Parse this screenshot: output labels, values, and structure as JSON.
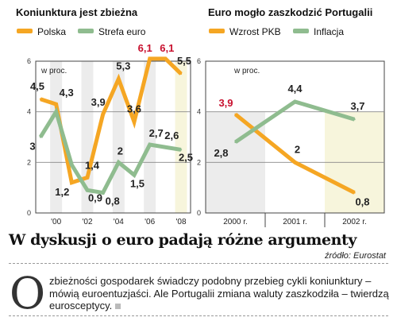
{
  "chart_data": [
    {
      "type": "line",
      "title": "Koniunktura jest zbieżna",
      "unit": "w proc.",
      "x": [
        1999,
        2000,
        2001,
        2002,
        2003,
        2004,
        2005,
        2006,
        2007,
        2008
      ],
      "x_tick_labels": [
        "'00",
        "'02",
        "'04",
        "'06",
        "'08"
      ],
      "x_ticks": [
        2000,
        2002,
        2004,
        2006,
        2008
      ],
      "ylim": [
        0,
        6
      ],
      "yticks": [
        "0",
        "2",
        "4",
        "6"
      ],
      "grid": true,
      "series": [
        {
          "name": "Polska",
          "color": "#f5a623",
          "values": [
            4.5,
            4.3,
            1.2,
            1.4,
            3.9,
            5.3,
            3.6,
            6.1,
            6.1,
            5.5
          ],
          "labels": [
            "4,5",
            "4,3",
            "1,2",
            "1,4",
            "3,9",
            "5,3",
            "3,6",
            "6,1",
            "6,1",
            "5,5"
          ],
          "highlight": [
            7,
            8
          ]
        },
        {
          "name": "Strefa euro",
          "color": "#8fbc8f",
          "values": [
            3.0,
            4.0,
            1.9,
            0.9,
            0.8,
            2.0,
            1.5,
            2.7,
            2.6,
            2.5
          ],
          "labels": [
            "3",
            "",
            "",
            "0,9",
            "0,8",
            "2",
            "1,5",
            "2,7",
            "2,6",
            "2,5"
          ]
        }
      ]
    },
    {
      "type": "line",
      "title": "Euro mogło zaszkodzić Portugalii",
      "unit": "w proc.",
      "categories": [
        "2000 r.",
        "2001 r.",
        "2002 r."
      ],
      "ylim": [
        0,
        6
      ],
      "yticks": [
        "0",
        "2",
        "4",
        "6"
      ],
      "grid": true,
      "series": [
        {
          "name": "Wzrost PKB",
          "color": "#f5a623",
          "values": [
            3.9,
            2.0,
            0.8
          ],
          "labels": [
            "3,9",
            "2",
            "0,8"
          ],
          "highlight": [
            0
          ]
        },
        {
          "name": "Inflacja",
          "color": "#8fbc8f",
          "values": [
            2.8,
            4.4,
            3.7
          ],
          "labels": [
            "2,8",
            "4,4",
            "3,7"
          ]
        }
      ]
    }
  ],
  "article": {
    "headline": "W dyskusji o euro padają różne argumenty",
    "source": "źródło: Eurostat",
    "dropcap": "O",
    "body": "zbieżności gospodarek świadczy podobny przebieg cykli koniunktury – mówią euroentuzjaści. Ale Portugalii zmiana waluty zaszkodziła – twierdzą eurosceptycy."
  }
}
